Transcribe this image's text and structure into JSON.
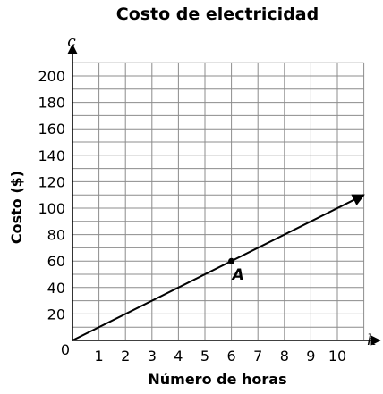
{
  "chart_data": {
    "type": "line",
    "title": "Costo de electricidad",
    "xlabel": "Número de horas",
    "ylabel": "Costo ($)",
    "x_var": "h",
    "y_var": "c",
    "origin_label": "0",
    "xlim": [
      0,
      11
    ],
    "ylim": [
      0,
      210
    ],
    "x_ticks": [
      1,
      2,
      3,
      4,
      5,
      6,
      7,
      8,
      9,
      10
    ],
    "y_ticks": [
      20,
      40,
      60,
      80,
      100,
      120,
      140,
      160,
      180,
      200
    ],
    "grid": true,
    "series": [
      {
        "x": [
          0,
          11
        ],
        "y": [
          0,
          110
        ]
      }
    ],
    "points": [
      {
        "label": "A",
        "x": 6,
        "y": 60
      }
    ]
  }
}
